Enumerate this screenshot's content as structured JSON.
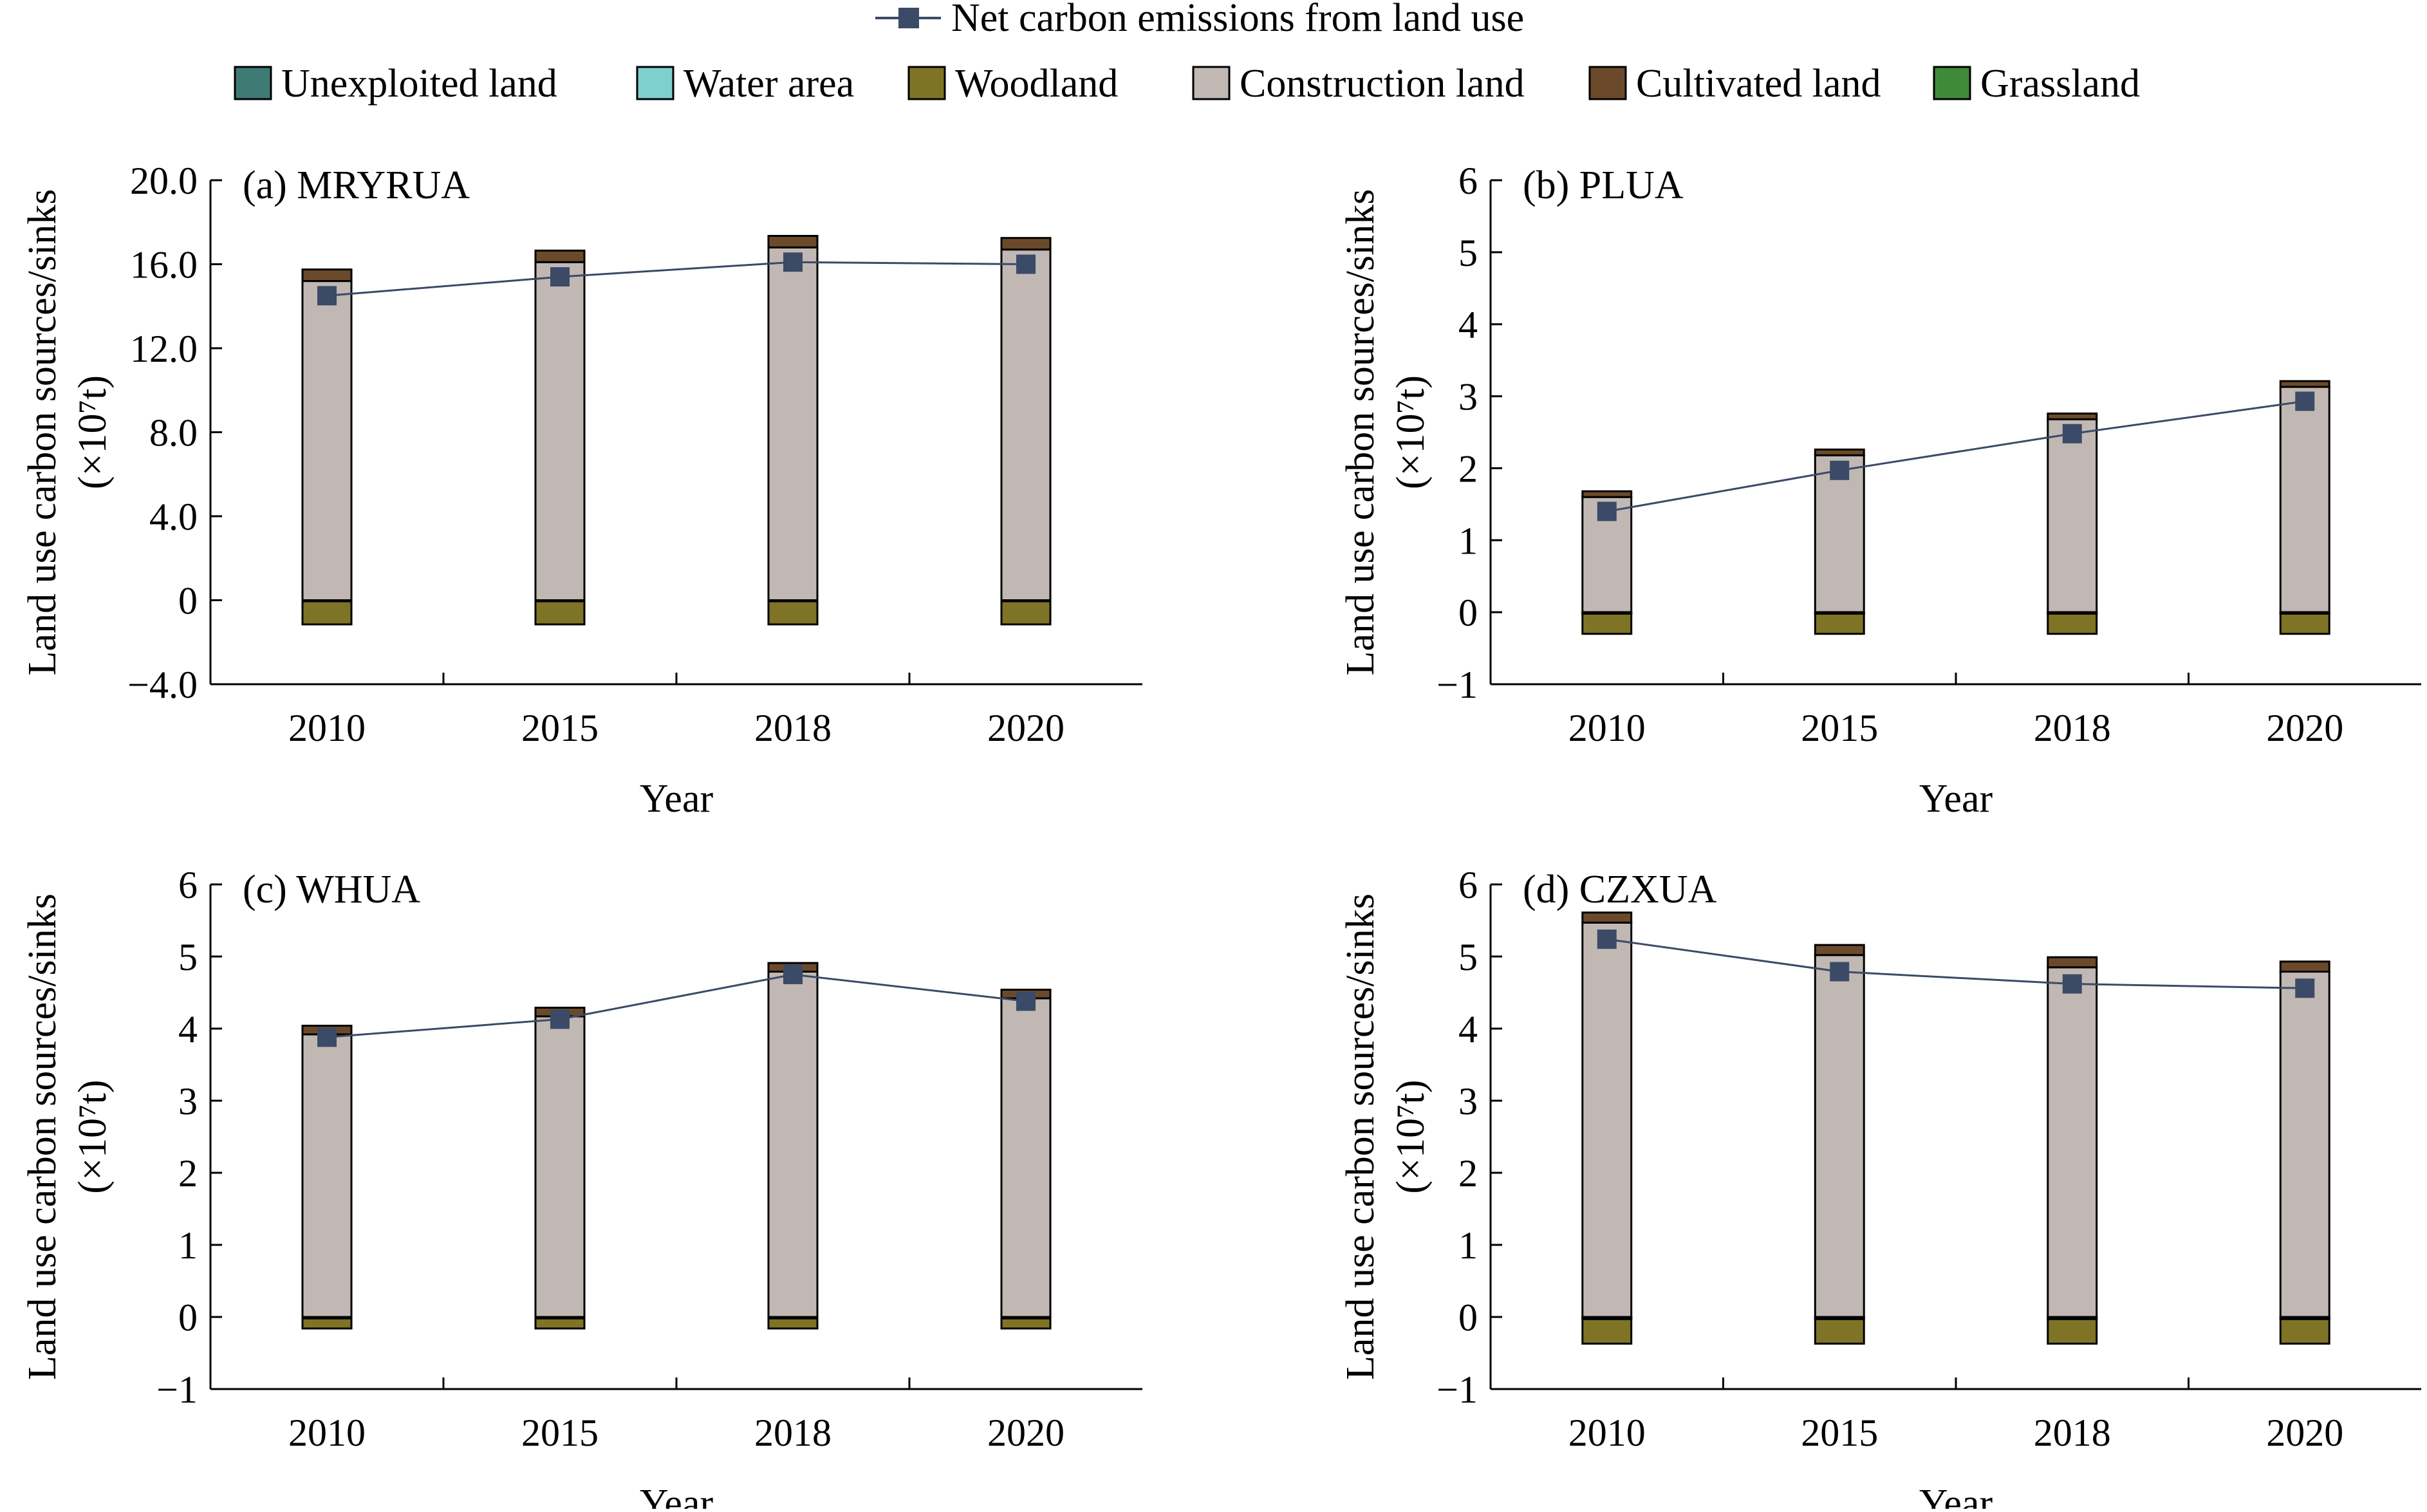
{
  "colors": {
    "Unexploited land": "#3f7a74",
    "Water area": "#7fcfcf",
    "Woodland": "#7f7426",
    "Construction land": "#c1b8b4",
    "Cultivated land": "#6b4a2b",
    "Grassland": "#3f8a3a",
    "Net carbon emissions from land use": "#3b4a66"
  },
  "legend": {
    "line_label": "Net carbon emissions from land use",
    "items": [
      "Unexploited land",
      "Water area",
      "Woodland",
      "Construction land",
      "Cultivated land",
      "Grassland"
    ]
  },
  "chart_data": [
    {
      "type": "bar",
      "title": "(a) MRYRUA",
      "xlabel": "Year",
      "ylabel": "Land use carbon sources/sinks",
      "ylabel_unit": "(×10⁷t)",
      "categories": [
        "2010",
        "2015",
        "2018",
        "2020"
      ],
      "ylim": [
        -4,
        20
      ],
      "yticks": [
        20,
        16,
        12,
        8,
        4,
        0,
        -4
      ],
      "yticklabels": [
        "20.0",
        "16.0",
        "12.0",
        "8.0",
        "4.0",
        "0",
        "−4.0"
      ],
      "series": [
        {
          "name": "Unexploited land",
          "values": [
            0,
            0,
            0,
            0
          ]
        },
        {
          "name": "Water area",
          "values": [
            -0.03,
            -0.03,
            -0.03,
            -0.03
          ]
        },
        {
          "name": "Woodland",
          "values": [
            -1.1,
            -1.1,
            -1.1,
            -1.1
          ]
        },
        {
          "name": "Construction land",
          "values": [
            15.2,
            16.1,
            16.8,
            16.7
          ]
        },
        {
          "name": "Cultivated land",
          "values": [
            0.55,
            0.55,
            0.55,
            0.55
          ]
        },
        {
          "name": "Grassland",
          "values": [
            -0.02,
            -0.02,
            -0.02,
            -0.02
          ]
        }
      ],
      "line": {
        "name": "Net carbon emissions from land use",
        "values": [
          14.5,
          15.4,
          16.1,
          16.0
        ]
      }
    },
    {
      "type": "bar",
      "title": "(b) PLUA",
      "xlabel": "Year",
      "ylabel": "Land use carbon sources/sinks",
      "ylabel_unit": "(×10⁷t)",
      "categories": [
        "2010",
        "2015",
        "2018",
        "2020"
      ],
      "ylim": [
        -1,
        6
      ],
      "yticks": [
        6,
        5,
        4,
        3,
        2,
        1,
        0,
        -1
      ],
      "yticklabels": [
        "6",
        "5",
        "4",
        "3",
        "2",
        "1",
        "0",
        "−1"
      ],
      "series": [
        {
          "name": "Unexploited land",
          "values": [
            0,
            0,
            0,
            0
          ]
        },
        {
          "name": "Water area",
          "values": [
            -0.01,
            -0.01,
            -0.01,
            -0.01
          ]
        },
        {
          "name": "Woodland",
          "values": [
            -0.28,
            -0.28,
            -0.28,
            -0.28
          ]
        },
        {
          "name": "Construction land",
          "values": [
            1.6,
            2.18,
            2.68,
            3.13
          ]
        },
        {
          "name": "Cultivated land",
          "values": [
            0.08,
            0.08,
            0.08,
            0.08
          ]
        },
        {
          "name": "Grassland",
          "values": [
            -0.01,
            -0.01,
            -0.01,
            -0.01
          ]
        }
      ],
      "line": {
        "name": "Net carbon emissions from land use",
        "values": [
          1.4,
          1.97,
          2.48,
          2.93
        ]
      }
    },
    {
      "type": "bar",
      "title": "(c) WHUA",
      "xlabel": "Year",
      "ylabel": "Land use carbon sources/sinks",
      "ylabel_unit": "(×10⁷t)",
      "categories": [
        "2010",
        "2015",
        "2018",
        "2020"
      ],
      "ylim": [
        -1,
        6
      ],
      "yticks": [
        6,
        5,
        4,
        3,
        2,
        1,
        0,
        -1
      ],
      "yticklabels": [
        "6",
        "5",
        "4",
        "3",
        "2",
        "1",
        "0",
        "−1"
      ],
      "series": [
        {
          "name": "Unexploited land",
          "values": [
            0,
            0,
            0,
            0
          ]
        },
        {
          "name": "Water area",
          "values": [
            -0.01,
            -0.01,
            -0.01,
            -0.01
          ]
        },
        {
          "name": "Woodland",
          "values": [
            -0.14,
            -0.14,
            -0.14,
            -0.14
          ]
        },
        {
          "name": "Construction land",
          "values": [
            3.92,
            4.17,
            4.79,
            4.42
          ]
        },
        {
          "name": "Cultivated land",
          "values": [
            0.12,
            0.12,
            0.12,
            0.12
          ]
        },
        {
          "name": "Grassland",
          "values": [
            -0.01,
            -0.01,
            -0.01,
            -0.01
          ]
        }
      ],
      "line": {
        "name": "Net carbon emissions from land use",
        "values": [
          3.88,
          4.13,
          4.75,
          4.38
        ]
      }
    },
    {
      "type": "bar",
      "title": "(d) CZXUA",
      "xlabel": "Year",
      "ylabel": "Land use carbon sources/sinks",
      "ylabel_unit": "(×10⁷t)",
      "categories": [
        "2010",
        "2015",
        "2018",
        "2020"
      ],
      "ylim": [
        -1,
        6
      ],
      "yticks": [
        6,
        5,
        4,
        3,
        2,
        1,
        0,
        -1
      ],
      "yticklabels": [
        "6",
        "5",
        "4",
        "3",
        "2",
        "1",
        "0",
        "−1"
      ],
      "series": [
        {
          "name": "Unexploited land",
          "values": [
            0,
            0,
            0,
            0
          ]
        },
        {
          "name": "Water area",
          "values": [
            -0.01,
            -0.01,
            -0.01,
            -0.01
          ]
        },
        {
          "name": "Woodland",
          "values": [
            -0.34,
            -0.34,
            -0.34,
            -0.34
          ]
        },
        {
          "name": "Construction land",
          "values": [
            5.47,
            5.02,
            4.85,
            4.79
          ]
        },
        {
          "name": "Cultivated land",
          "values": [
            0.14,
            0.14,
            0.14,
            0.14
          ]
        },
        {
          "name": "Grassland",
          "values": [
            -0.02,
            -0.02,
            -0.02,
            -0.02
          ]
        }
      ],
      "line": {
        "name": "Net carbon emissions from land use",
        "values": [
          5.24,
          4.79,
          4.62,
          4.56
        ]
      }
    }
  ]
}
